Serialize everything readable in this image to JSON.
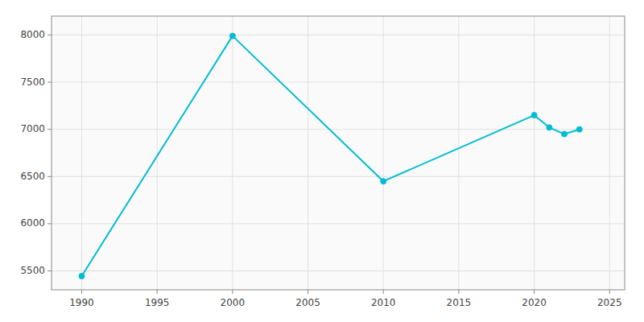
{
  "chart_data": {
    "type": "line",
    "x": [
      1990,
      2000,
      2010,
      2020,
      2021,
      2022,
      2023
    ],
    "values": [
      5445,
      7990,
      6450,
      7150,
      7020,
      6950,
      7000
    ],
    "color": "#00BCD4",
    "marker": "circle",
    "xlim": [
      1988,
      2026
    ],
    "ylim": [
      5300,
      8200
    ],
    "xticks": [
      1990,
      1995,
      2000,
      2005,
      2010,
      2015,
      2020,
      2025
    ],
    "yticks": [
      5500,
      6000,
      6500,
      7000,
      7500,
      8000
    ],
    "grid": true
  }
}
